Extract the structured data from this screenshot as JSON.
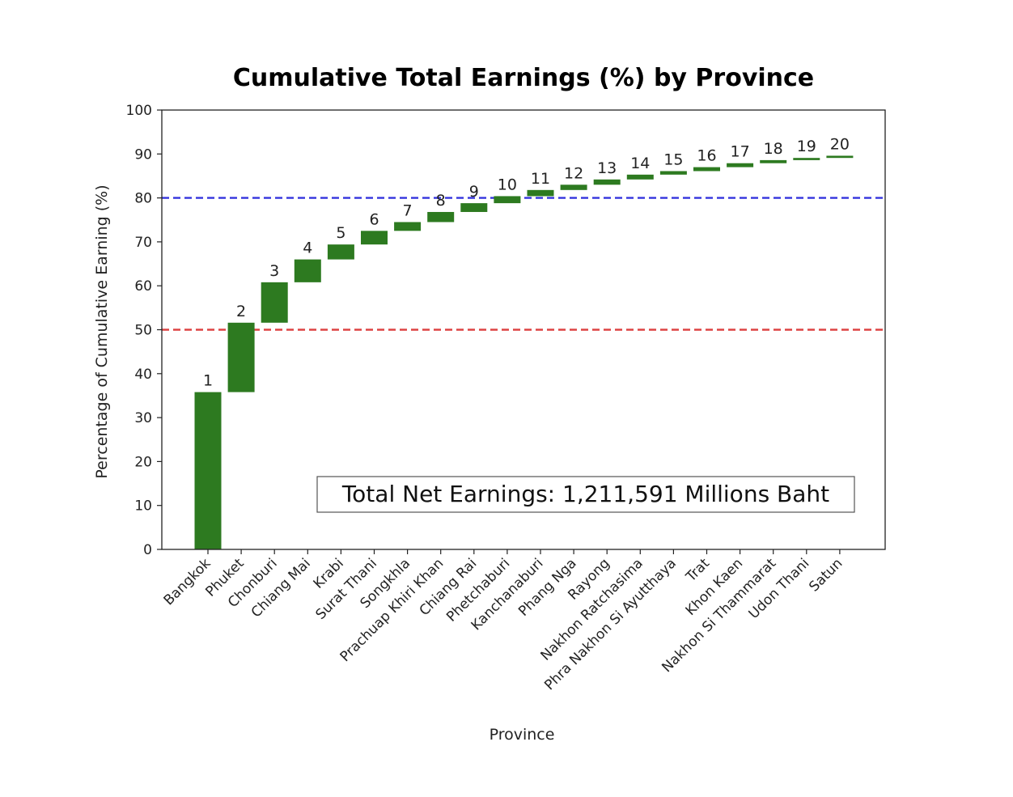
{
  "chart_data": {
    "type": "bar",
    "subtype": "waterfall",
    "title": "Cumulative Total Earnings (%) by Province",
    "xlabel": "Province",
    "ylabel": "Percentage of Cumulative Earning (%)",
    "ylim": [
      0,
      100
    ],
    "yticks": [
      "0",
      "10",
      "20",
      "30",
      "40",
      "50",
      "60",
      "70",
      "80",
      "90",
      "100"
    ],
    "categories": [
      "Bangkok",
      "Phuket",
      "Chonburi",
      "Chiang Mai",
      "Krabi",
      "Surat Thani",
      "Songkhla",
      "Prachuap Khiri Khan",
      "Chiang Rai",
      "Phetchaburi",
      "Kanchanaburi",
      "Phang Nga",
      "Rayong",
      "Nakhon Ratchasima",
      "Phra Nakhon Si Ayutthaya",
      "Trat",
      "Khon Kaen",
      "Nakhon Si Thammarat",
      "Udon Thani",
      "Satun"
    ],
    "rank_labels": [
      "1",
      "2",
      "3",
      "4",
      "5",
      "6",
      "7",
      "8",
      "9",
      "10",
      "11",
      "12",
      "13",
      "14",
      "15",
      "16",
      "17",
      "18",
      "19",
      "20"
    ],
    "bar_bottom": [
      0,
      35.8,
      51.6,
      60.8,
      66.0,
      69.4,
      72.5,
      74.5,
      76.8,
      78.8,
      80.4,
      81.8,
      83.0,
      84.2,
      85.3,
      86.1,
      87.0,
      87.9,
      88.6,
      89.1
    ],
    "bar_top": [
      35.8,
      51.6,
      60.8,
      66.0,
      69.4,
      72.5,
      74.5,
      76.8,
      78.8,
      80.4,
      81.8,
      83.0,
      84.2,
      85.3,
      86.1,
      87.0,
      87.9,
      88.6,
      89.1,
      89.6
    ],
    "reference_lines": [
      {
        "value": 80,
        "color": "#3333dd",
        "style": "dashed"
      },
      {
        "value": 50,
        "color": "#dd4444",
        "style": "dashed"
      }
    ],
    "bar_color": "#2d7a20",
    "grid": false,
    "annotation": "Total Net Earnings: 1,211,591 Millions Baht"
  }
}
